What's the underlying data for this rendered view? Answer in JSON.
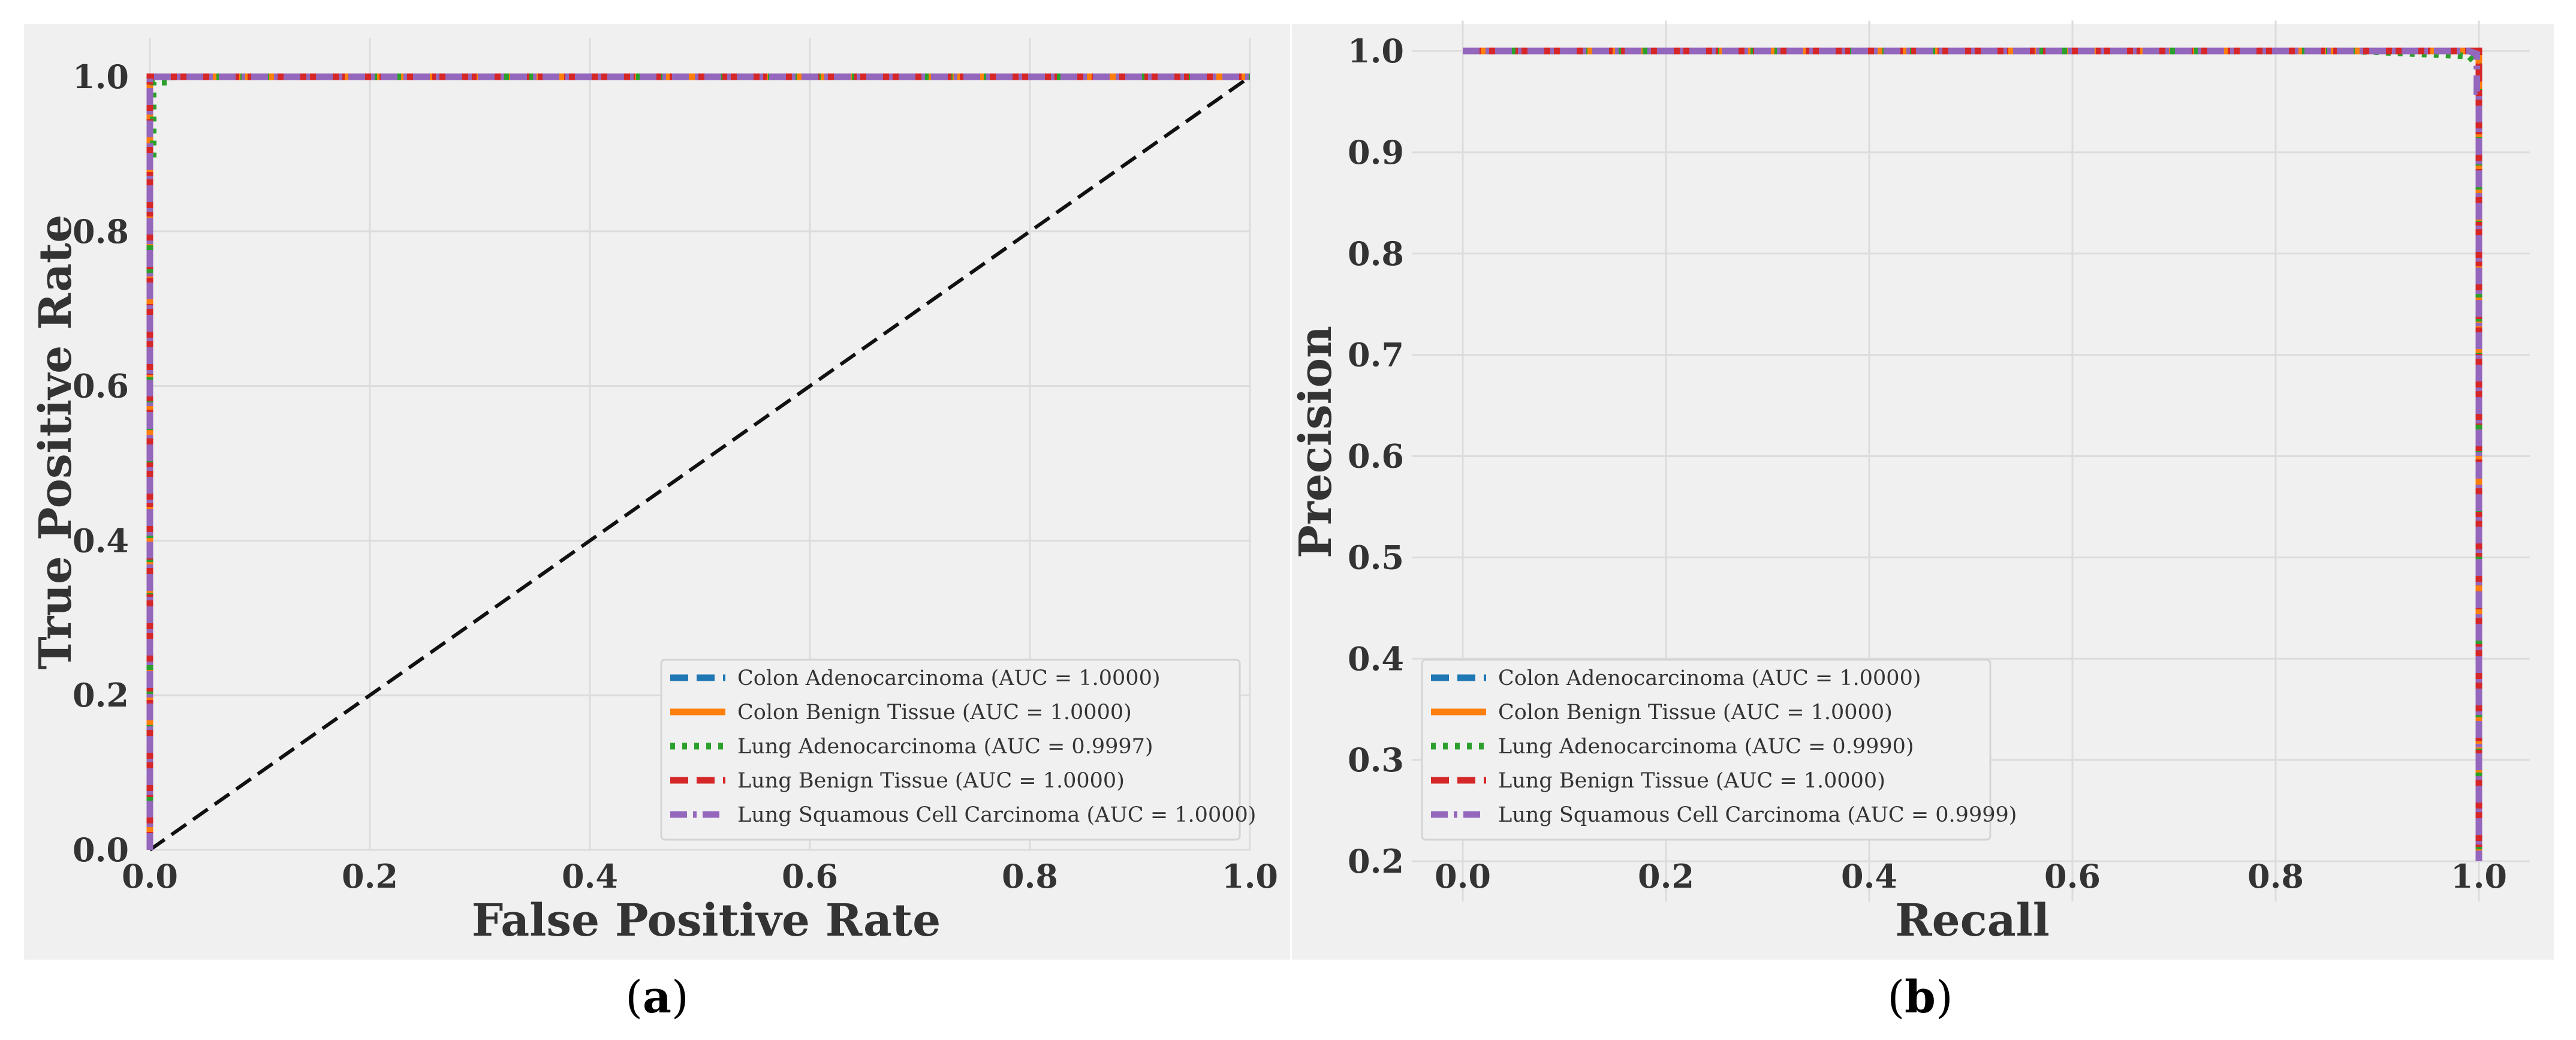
{
  "chart_data": [
    {
      "type": "line",
      "panel_label": "a",
      "xlabel": "False Positive Rate",
      "ylabel": "True Positive Rate",
      "xlim": [
        0.0,
        1.0
      ],
      "ylim": [
        0.0,
        1.05
      ],
      "xticks": [
        "0.0",
        "0.2",
        "0.4",
        "0.6",
        "0.8",
        "1.0"
      ],
      "yticks": [
        "0.0",
        "0.2",
        "0.4",
        "0.6",
        "0.8",
        "1.0"
      ],
      "grid": true,
      "legend_position": "lower-right",
      "reference_line": {
        "style": "dashed",
        "color": "#111111",
        "x": [
          0,
          1
        ],
        "y": [
          0,
          1
        ]
      },
      "series": [
        {
          "name": "Colon Adenocarcinoma (AUC = 1.0000)",
          "color": "#1f77b4",
          "style": "dashed",
          "x": [
            0.0,
            0.0,
            1.0
          ],
          "y": [
            0.0,
            1.0,
            1.0
          ]
        },
        {
          "name": "Colon Benign Tissue (AUC = 1.0000)",
          "color": "#ff7f0e",
          "style": "solid",
          "x": [
            0.0,
            0.0,
            1.0
          ],
          "y": [
            0.0,
            1.0,
            1.0
          ]
        },
        {
          "name": "Lung Adenocarcinoma (AUC = 0.9997)",
          "color": "#2ca02c",
          "style": "dotted",
          "x": [
            0.0,
            0.0,
            0.003,
            0.003,
            0.02,
            0.02,
            1.0
          ],
          "y": [
            0.0,
            0.89,
            0.89,
            0.993,
            0.993,
            1.0,
            1.0
          ]
        },
        {
          "name": "Lung Benign Tissue (AUC = 1.0000)",
          "color": "#d62728",
          "style": "dashed",
          "x": [
            0.0,
            0.0,
            1.0
          ],
          "y": [
            0.0,
            1.0,
            1.0
          ]
        },
        {
          "name": "Lung Squamous Cell Carcinoma (AUC = 1.0000)",
          "color": "#9467bd",
          "style": "dashdot",
          "x": [
            0.0,
            0.0,
            1.0
          ],
          "y": [
            0.0,
            1.0,
            1.0
          ]
        }
      ]
    },
    {
      "type": "line",
      "panel_label": "b",
      "xlabel": "Recall",
      "ylabel": "Precision",
      "xlim": [
        -0.05,
        1.05
      ],
      "ylim": [
        0.16,
        1.03
      ],
      "xticks": [
        "0.0",
        "0.2",
        "0.4",
        "0.6",
        "0.8",
        "1.0"
      ],
      "yticks": [
        "0.2",
        "0.3",
        "0.4",
        "0.5",
        "0.6",
        "0.7",
        "0.8",
        "0.9",
        "1.0"
      ],
      "grid": true,
      "legend_position": "lower-left",
      "series": [
        {
          "name": "Colon Adenocarcinoma (AUC = 1.0000)",
          "color": "#1f77b4",
          "style": "dashed",
          "x": [
            0.0,
            1.0,
            1.0
          ],
          "y": [
            1.0,
            1.0,
            0.2
          ]
        },
        {
          "name": "Colon Benign Tissue (AUC = 1.0000)",
          "color": "#ff7f0e",
          "style": "solid",
          "x": [
            0.0,
            1.0,
            1.0
          ],
          "y": [
            1.0,
            1.0,
            0.2
          ]
        },
        {
          "name": "Lung Adenocarcinoma (AUC = 0.9990)",
          "color": "#2ca02c",
          "style": "dotted",
          "x": [
            0.0,
            0.88,
            0.99,
            1.0,
            1.0
          ],
          "y": [
            1.0,
            1.0,
            0.995,
            0.985,
            0.2
          ]
        },
        {
          "name": "Lung Benign Tissue (AUC = 1.0000)",
          "color": "#d62728",
          "style": "dashed",
          "x": [
            0.0,
            1.0,
            1.0
          ],
          "y": [
            1.0,
            1.0,
            0.2
          ]
        },
        {
          "name": "Lung Squamous Cell Carcinoma (AUC = 0.9999)",
          "color": "#9467bd",
          "style": "dashdot",
          "x": [
            0.0,
            0.99,
            0.998,
            0.998,
            1.0,
            1.0
          ],
          "y": [
            1.0,
            1.0,
            0.997,
            0.96,
            0.96,
            0.2
          ]
        }
      ]
    }
  ]
}
